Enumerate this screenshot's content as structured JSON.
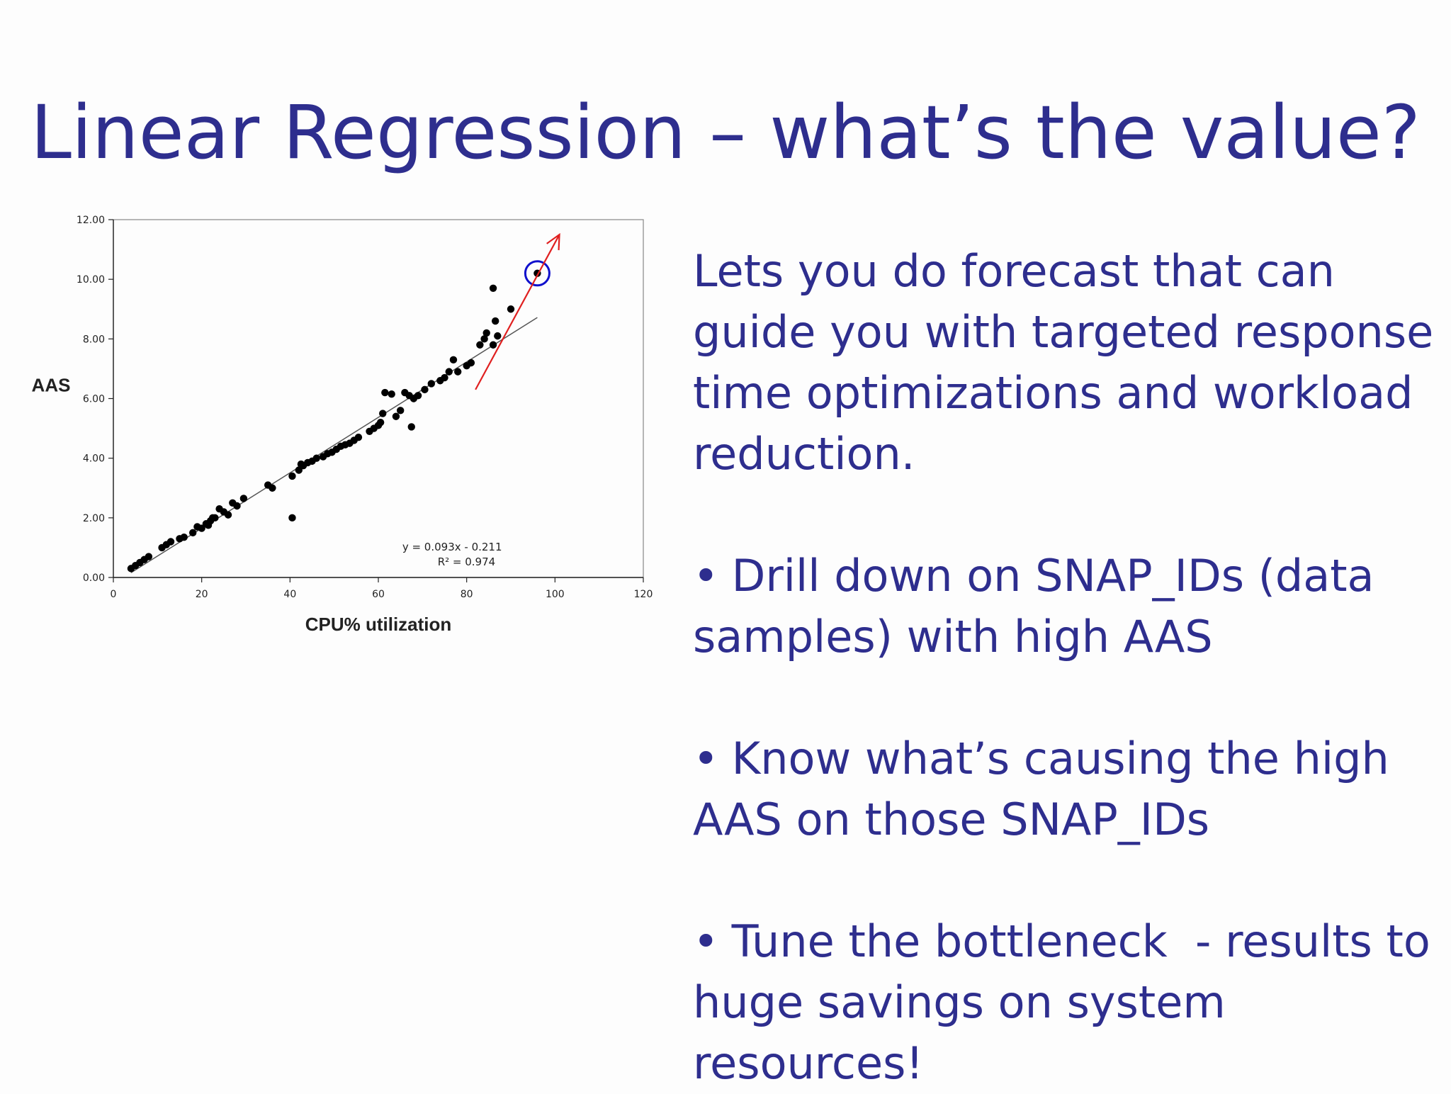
{
  "slide": {
    "title": "Linear Regression – what’s the value?",
    "intro": "Lets you do forecast that can guide you with targeted response time optimizations and workload reduction.",
    "bullets": [
      {
        "dot": "•",
        "text": "Drill down on SNAP_IDs (data samples) with high AAS"
      },
      {
        "dot": "•",
        "text": "Know what’s causing the high AAS on those SNAP_IDs"
      },
      {
        "dot": "•",
        "text": "Tune the bottleneck  - results to huge savings on system resources!"
      }
    ]
  },
  "colors": {
    "text": "#2e2e8e",
    "points": "#000000",
    "trendline": "#555555",
    "arrow": "#e02020",
    "highlight_circle": "#1010cc"
  },
  "chart_data": {
    "type": "scatter",
    "xlabel": "CPU% utilization",
    "ylabel": "AAS",
    "xlim": [
      0,
      120
    ],
    "ylim": [
      0,
      12
    ],
    "x_ticks": [
      0,
      20,
      40,
      60,
      80,
      100,
      120
    ],
    "y_ticks": [
      0,
      2,
      4,
      6,
      8,
      10,
      12
    ],
    "x_tick_labels": [
      "0",
      "20",
      "40",
      "60",
      "80",
      "100",
      "120"
    ],
    "y_tick_labels": [
      "0.00",
      "2.00",
      "4.00",
      "6.00",
      "8.00",
      "10.00",
      "12.00"
    ],
    "grid": false,
    "legend": "none",
    "trendline": {
      "slope": 0.093,
      "intercept": -0.211,
      "x_range": [
        4,
        96
      ],
      "equation_label": "y = 0.093x - 0.211",
      "r2_label": "R² = 0.974"
    },
    "arrow_annotation": {
      "from": [
        82,
        6.3
      ],
      "to": [
        101,
        11.5
      ]
    },
    "circle_annotation": {
      "center": [
        96,
        10.2
      ]
    },
    "points": [
      [
        4,
        0.3
      ],
      [
        5,
        0.4
      ],
      [
        6,
        0.5
      ],
      [
        7,
        0.6
      ],
      [
        8,
        0.7
      ],
      [
        11,
        1.0
      ],
      [
        12,
        1.1
      ],
      [
        13,
        1.2
      ],
      [
        15,
        1.3
      ],
      [
        16,
        1.35
      ],
      [
        18,
        1.5
      ],
      [
        19,
        1.7
      ],
      [
        20,
        1.65
      ],
      [
        21,
        1.8
      ],
      [
        21.5,
        1.75
      ],
      [
        22,
        1.9
      ],
      [
        22.5,
        2.0
      ],
      [
        23,
        2.0
      ],
      [
        24,
        2.3
      ],
      [
        25,
        2.2
      ],
      [
        26,
        2.1
      ],
      [
        27,
        2.5
      ],
      [
        28,
        2.4
      ],
      [
        29.5,
        2.65
      ],
      [
        35,
        3.1
      ],
      [
        36,
        3.0
      ],
      [
        40.5,
        2.0
      ],
      [
        40.5,
        3.4
      ],
      [
        42,
        3.6
      ],
      [
        42.5,
        3.8
      ],
      [
        43,
        3.75
      ],
      [
        44,
        3.85
      ],
      [
        45,
        3.9
      ],
      [
        46,
        4.0
      ],
      [
        47.5,
        4.05
      ],
      [
        48.5,
        4.15
      ],
      [
        49.5,
        4.2
      ],
      [
        50.5,
        4.3
      ],
      [
        51.5,
        4.4
      ],
      [
        52.5,
        4.45
      ],
      [
        53.5,
        4.5
      ],
      [
        54.5,
        4.6
      ],
      [
        55.5,
        4.7
      ],
      [
        58,
        4.9
      ],
      [
        59,
        5.0
      ],
      [
        60,
        5.1
      ],
      [
        60.5,
        5.2
      ],
      [
        61,
        5.5
      ],
      [
        61.5,
        6.2
      ],
      [
        63,
        6.15
      ],
      [
        64,
        5.4
      ],
      [
        65,
        5.6
      ],
      [
        66,
        6.2
      ],
      [
        67,
        6.1
      ],
      [
        67.5,
        5.05
      ],
      [
        68,
        6.0
      ],
      [
        69,
        6.1
      ],
      [
        70.5,
        6.3
      ],
      [
        72,
        6.5
      ],
      [
        74,
        6.6
      ],
      [
        75,
        6.7
      ],
      [
        76,
        6.9
      ],
      [
        77,
        7.3
      ],
      [
        78,
        6.9
      ],
      [
        80,
        7.1
      ],
      [
        81,
        7.2
      ],
      [
        83,
        7.8
      ],
      [
        84,
        8.0
      ],
      [
        84.5,
        8.2
      ],
      [
        86,
        7.8
      ],
      [
        86,
        9.7
      ],
      [
        86.5,
        8.6
      ],
      [
        87,
        8.1
      ],
      [
        90,
        9.0
      ],
      [
        96,
        10.2
      ]
    ]
  }
}
